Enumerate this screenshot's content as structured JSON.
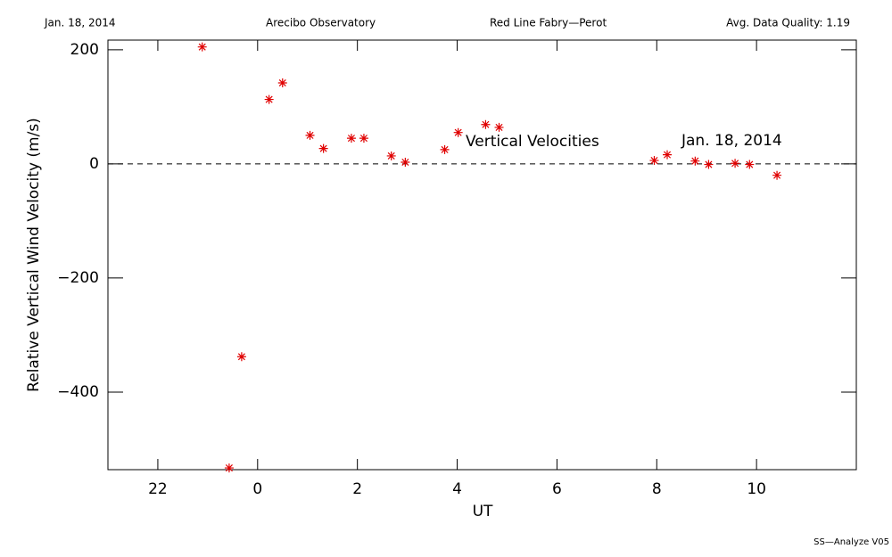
{
  "header": [
    "Jan. 18, 2014",
    "Arecibo Observatory",
    "Red Line Fabry—Perot",
    "Avg. Data Quality: 1.19"
  ],
  "footer": "SS—Analyze V05",
  "chart_data": {
    "type": "scatter",
    "xlabel": "UT",
    "ylabel": "Relative Vertical Wind Velocity (m/s)",
    "annotations": [
      "Vertical Velocities",
      "Jan. 18, 2014"
    ],
    "color": "#e00000",
    "marker": "asterisk",
    "reference_line": 0,
    "x": [
      -1.11,
      -0.57,
      -0.32,
      0.23,
      0.5,
      1.05,
      1.32,
      1.88,
      2.13,
      2.68,
      2.96,
      3.75,
      4.02,
      4.57,
      4.84,
      7.95,
      8.21,
      8.77,
      9.04,
      9.57,
      9.86,
      10.41
    ],
    "values": [
      205,
      -533,
      -338,
      113,
      142,
      50,
      27,
      45,
      45,
      14,
      3,
      25,
      55,
      69,
      64,
      6,
      16,
      5,
      -1,
      1,
      -1,
      -20
    ],
    "xlim": [
      -3,
      12
    ],
    "ylim": [
      -536,
      217
    ],
    "xticks": [
      {
        "value": -2,
        "label": "22"
      },
      0,
      2,
      4,
      6,
      8,
      10
    ],
    "yticks": [
      {
        "value": 200,
        "label": "200"
      },
      0,
      {
        "value": -200,
        "label": "−200"
      },
      {
        "value": -400,
        "label": "−400"
      }
    ]
  }
}
